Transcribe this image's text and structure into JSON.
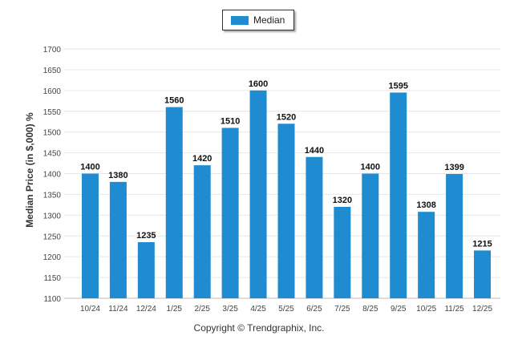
{
  "chart_data": {
    "type": "bar",
    "categories": [
      "10/24",
      "11/24",
      "12/24",
      "1/25",
      "2/25",
      "3/25",
      "4/25",
      "5/25",
      "6/25",
      "7/25",
      "8/25",
      "9/25",
      "10/25",
      "11/25",
      "12/25"
    ],
    "series": [
      {
        "name": "Median",
        "values": [
          1400,
          1380,
          1235,
          1560,
          1420,
          1510,
          1600,
          1520,
          1440,
          1320,
          1400,
          1595,
          1308,
          1399,
          1215
        ]
      }
    ],
    "ylabel": "Median Price (in $,000) %",
    "ylim": [
      1100,
      1700
    ],
    "yticks": [
      1100,
      1150,
      1200,
      1250,
      1300,
      1350,
      1400,
      1450,
      1500,
      1550,
      1600,
      1650,
      1700
    ],
    "grid": true,
    "legend": "top-center",
    "bar_color": "#1f8bd0",
    "footer": "Copyright © Trendgraphix, Inc."
  }
}
